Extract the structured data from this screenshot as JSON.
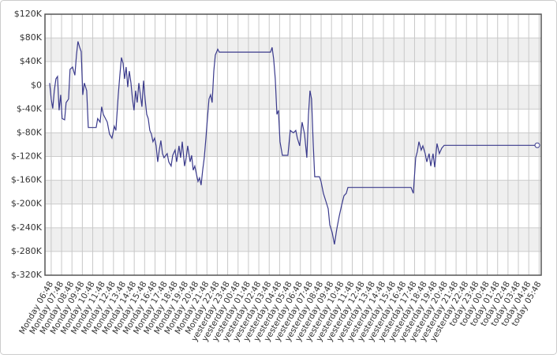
{
  "chart_data": {
    "type": "line",
    "color": "#3a3a8c",
    "grid": true,
    "xlim": [
      -0.6,
      47.2
    ],
    "ylim": [
      -320000,
      120000
    ],
    "yticks": [
      {
        "value": 120000,
        "label": "$120K"
      },
      {
        "value": 80000,
        "label": "$80K"
      },
      {
        "value": 40000,
        "label": "$40K"
      },
      {
        "value": 0,
        "label": "$0"
      },
      {
        "value": -40000,
        "label": "$-40K"
      },
      {
        "value": -80000,
        "label": "$-80K"
      },
      {
        "value": -120000,
        "label": "$-120K"
      },
      {
        "value": -160000,
        "label": "$-160K"
      },
      {
        "value": -200000,
        "label": "$-200K"
      },
      {
        "value": -240000,
        "label": "$-240K"
      },
      {
        "value": -280000,
        "label": "$-280K"
      },
      {
        "value": -320000,
        "label": "$-320K"
      }
    ],
    "xticks": [
      {
        "value": 0,
        "label": "Monday 06:48"
      },
      {
        "value": 1,
        "label": "Monday 07:48"
      },
      {
        "value": 2,
        "label": "Monday 08:48"
      },
      {
        "value": 3,
        "label": "Monday 09:48"
      },
      {
        "value": 4,
        "label": "Monday 10:48"
      },
      {
        "value": 5,
        "label": "Monday 11:48"
      },
      {
        "value": 6,
        "label": "Monday 12:48"
      },
      {
        "value": 7,
        "label": "Monday 13:48"
      },
      {
        "value": 8,
        "label": "Monday 14:48"
      },
      {
        "value": 9,
        "label": "Monday 15:48"
      },
      {
        "value": 10,
        "label": "Monday 16:48"
      },
      {
        "value": 11,
        "label": "Monday 17:48"
      },
      {
        "value": 12,
        "label": "Monday 18:48"
      },
      {
        "value": 13,
        "label": "Monday 19:48"
      },
      {
        "value": 14,
        "label": "Monday 20:48"
      },
      {
        "value": 15,
        "label": "Monday 21:48"
      },
      {
        "value": 16,
        "label": "Monday 22:48"
      },
      {
        "value": 17,
        "label": "yesterday 23:48"
      },
      {
        "value": 18,
        "label": "yesterday 00:48"
      },
      {
        "value": 19,
        "label": "yesterday 01:48"
      },
      {
        "value": 20,
        "label": "yesterday 02:48"
      },
      {
        "value": 21,
        "label": "yesterday 03:48"
      },
      {
        "value": 22,
        "label": "yesterday 04:48"
      },
      {
        "value": 23,
        "label": "yesterday 05:48"
      },
      {
        "value": 24,
        "label": "yesterday 06:48"
      },
      {
        "value": 25,
        "label": "yesterday 07:48"
      },
      {
        "value": 26,
        "label": "yesterday 08:48"
      },
      {
        "value": 27,
        "label": "yesterday 09:48"
      },
      {
        "value": 28,
        "label": "yesterday 10:48"
      },
      {
        "value": 29,
        "label": "yesterday 11:48"
      },
      {
        "value": 30,
        "label": "yesterday 12:48"
      },
      {
        "value": 31,
        "label": "yesterday 13:48"
      },
      {
        "value": 32,
        "label": "yesterday 14:48"
      },
      {
        "value": 33,
        "label": "yesterday 15:48"
      },
      {
        "value": 34,
        "label": "yesterday 16:48"
      },
      {
        "value": 35,
        "label": "yesterday 17:48"
      },
      {
        "value": 36,
        "label": "yesterday 18:48"
      },
      {
        "value": 37,
        "label": "yesterday 19:48"
      },
      {
        "value": 38,
        "label": "yesterday 20:48"
      },
      {
        "value": 39,
        "label": "yesterday 21:48"
      },
      {
        "value": 40,
        "label": "yesterday 22:48"
      },
      {
        "value": 41,
        "label": "today 23:48"
      },
      {
        "value": 42,
        "label": "today 00:48"
      },
      {
        "value": 43,
        "label": "today 01:48"
      },
      {
        "value": 44,
        "label": "today 02:48"
      },
      {
        "value": 45,
        "label": "today 03:48"
      },
      {
        "value": 46,
        "label": "today 04:48"
      },
      {
        "value": 47,
        "label": "today 05:48"
      }
    ],
    "x": [
      -0.15,
      0,
      0.15,
      0.3,
      0.46,
      0.61,
      0.76,
      0.91,
      1.06,
      1.29,
      1.44,
      1.67,
      1.82,
      2.05,
      2.28,
      2.43,
      2.58,
      2.74,
      2.89,
      3.04,
      3.19,
      3.42,
      3.57,
      4.33,
      4.48,
      4.71,
      4.86,
      5.02,
      5.4,
      5.62,
      5.85,
      6.08,
      6.23,
      6.46,
      6.61,
      6.76,
      6.92,
      7.07,
      7.22,
      7.37,
      7.52,
      7.68,
      7.83,
      7.98,
      8.13,
      8.28,
      8.44,
      8.59,
      8.74,
      8.89,
      9.04,
      9.2,
      9.35,
      9.5,
      9.65,
      9.8,
      9.96,
      10.11,
      10.26,
      10.41,
      10.56,
      10.72,
      10.87,
      11.17,
      11.32,
      11.55,
      11.7,
      11.93,
      12.08,
      12.31,
      12.46,
      12.62,
      12.84,
      13,
      13.15,
      13.38,
      13.53,
      13.68,
      13.83,
      13.98,
      14.14,
      14.29,
      14.44,
      14.59,
      14.74,
      14.9,
      15.05,
      15.2,
      15.35,
      15.5,
      15.66,
      15.81,
      16.04,
      16.19,
      21.13,
      21.28,
      21.43,
      21.58,
      21.74,
      21.89,
      22.04,
      22.27,
      22.8,
      23.03,
      23.33,
      23.56,
      23.71,
      23.94,
      24.17,
      24.4,
      24.62,
      24.78,
      24.93,
      25.08,
      25.23,
      25.38,
      25.84,
      25.99,
      26.22,
      26.45,
      26.68,
      26.83,
      27.06,
      27.28,
      27.51,
      27.74,
      27.97,
      28.2,
      28.42,
      28.58,
      34.66,
      34.88,
      35.11,
      35.26,
      35.42,
      35.64,
      35.8,
      36.02,
      36.18,
      36.4,
      36.56,
      36.78,
      36.94,
      37.16,
      37.39,
      37.62,
      37.85,
      46.82
    ],
    "values": [
      4000,
      -23000,
      -39000,
      -9000,
      11000,
      15000,
      -42000,
      -16000,
      -56000,
      -58000,
      -29000,
      -23000,
      27000,
      31000,
      17000,
      51000,
      74000,
      64000,
      57000,
      -16000,
      4000,
      -9000,
      -71000,
      -71000,
      -56000,
      -62000,
      -36000,
      -49000,
      -62000,
      -82000,
      -89000,
      -69000,
      -76000,
      -16000,
      17000,
      47000,
      37000,
      11000,
      31000,
      -3000,
      24000,
      4000,
      -23000,
      -42000,
      -9000,
      -29000,
      4000,
      -16000,
      -36000,
      8000,
      -23000,
      -49000,
      -56000,
      -76000,
      -82000,
      -95000,
      -89000,
      -102000,
      -129000,
      -109000,
      -93000,
      -115000,
      -122000,
      -115000,
      -129000,
      -136000,
      -118000,
      -109000,
      -129000,
      -102000,
      -122000,
      -95000,
      -136000,
      -122000,
      -102000,
      -129000,
      -118000,
      -143000,
      -136000,
      -149000,
      -162000,
      -156000,
      -168000,
      -143000,
      -122000,
      -89000,
      -56000,
      -23000,
      -16000,
      -29000,
      24000,
      51000,
      61000,
      56000,
      56000,
      64000,
      44000,
      11000,
      -49000,
      -42000,
      -95000,
      -118000,
      -118000,
      -76000,
      -80000,
      -76000,
      -89000,
      -102000,
      -62000,
      -82000,
      -122000,
      -49000,
      -9000,
      -23000,
      -95000,
      -154000,
      -154000,
      -162000,
      -182000,
      -195000,
      -208000,
      -235000,
      -248000,
      -268000,
      -242000,
      -221000,
      -202000,
      -186000,
      -182000,
      -172000,
      -172000,
      -182000,
      -122000,
      -112000,
      -95000,
      -109000,
      -102000,
      -115000,
      -129000,
      -115000,
      -136000,
      -115000,
      -138000,
      -98000,
      -115000,
      -106000,
      -101000,
      -101000
    ]
  }
}
